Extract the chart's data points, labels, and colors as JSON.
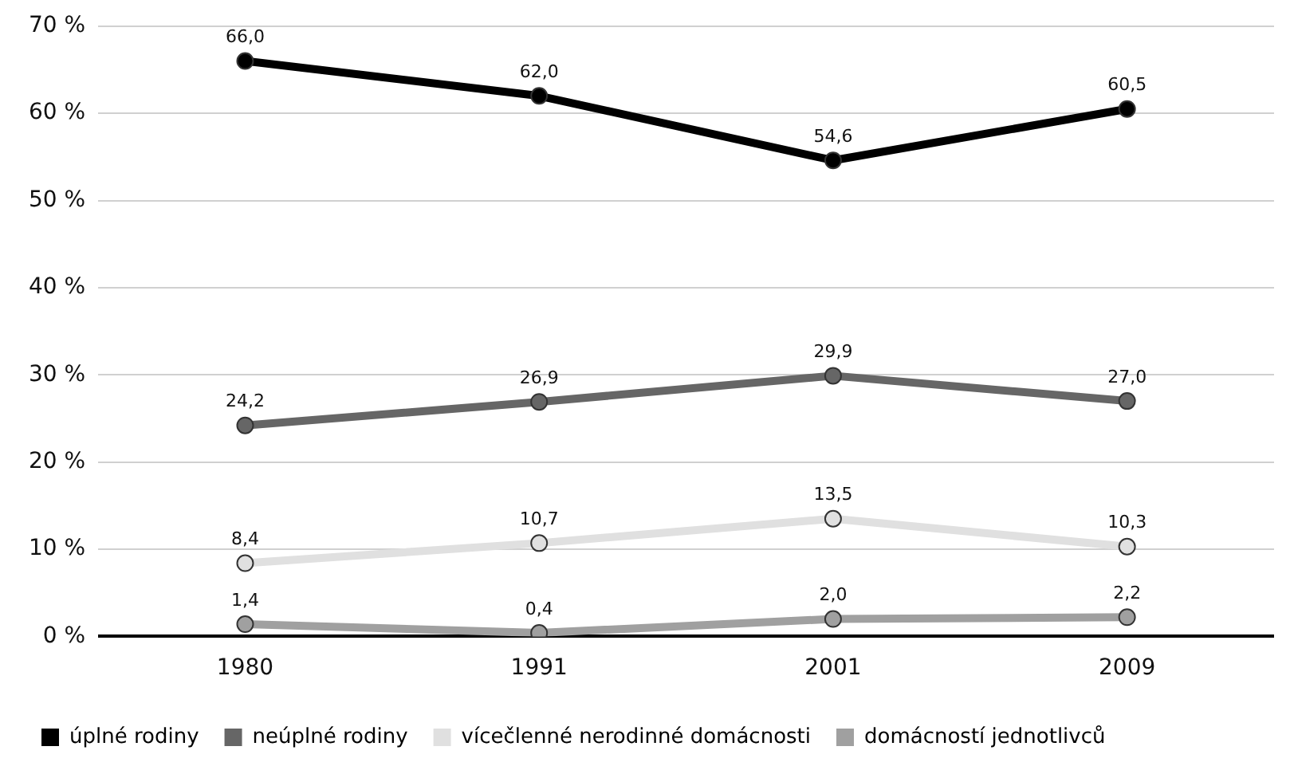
{
  "chart_data": {
    "type": "line",
    "categories": [
      "1980",
      "1991",
      "2001",
      "2009"
    ],
    "ylim": [
      0,
      70
    ],
    "yticks": [
      {
        "value": 0,
        "label": "0 %"
      },
      {
        "value": 10,
        "label": "10 %"
      },
      {
        "value": 20,
        "label": "20 %"
      },
      {
        "value": 30,
        "label": "30 %"
      },
      {
        "value": 40,
        "label": "40 %"
      },
      {
        "value": 50,
        "label": "50 %"
      },
      {
        "value": 60,
        "label": "60 %"
      },
      {
        "value": 70,
        "label": "70 %"
      }
    ],
    "grid": "y",
    "legend": "bottom",
    "marker": "circle",
    "line_style": "solid",
    "series": [
      {
        "name": "úplné rodiny",
        "color": "#000000",
        "values": [
          66.0,
          62.0,
          54.6,
          60.5
        ],
        "value_labels": [
          "66,0",
          "62,0",
          "54,6",
          "60,5"
        ]
      },
      {
        "name": "neúplné rodiny",
        "color": "#666666",
        "values": [
          24.2,
          26.9,
          29.9,
          27.0
        ],
        "value_labels": [
          "24,2",
          "26,9",
          "29,9",
          "27,0"
        ]
      },
      {
        "name": "vícečlenné nerodinné domácnosti",
        "color": "#e0e0e0",
        "values": [
          8.4,
          10.7,
          13.5,
          10.3
        ],
        "value_labels": [
          "8,4",
          "10,7",
          "13,5",
          "10,3"
        ]
      },
      {
        "name": "domácností jednotlivců",
        "color": "#a0a0a0",
        "values": [
          1.4,
          0.4,
          2.0,
          2.2
        ],
        "value_labels": [
          "1,4",
          "0,4",
          "2,0",
          "2,2"
        ]
      }
    ]
  }
}
